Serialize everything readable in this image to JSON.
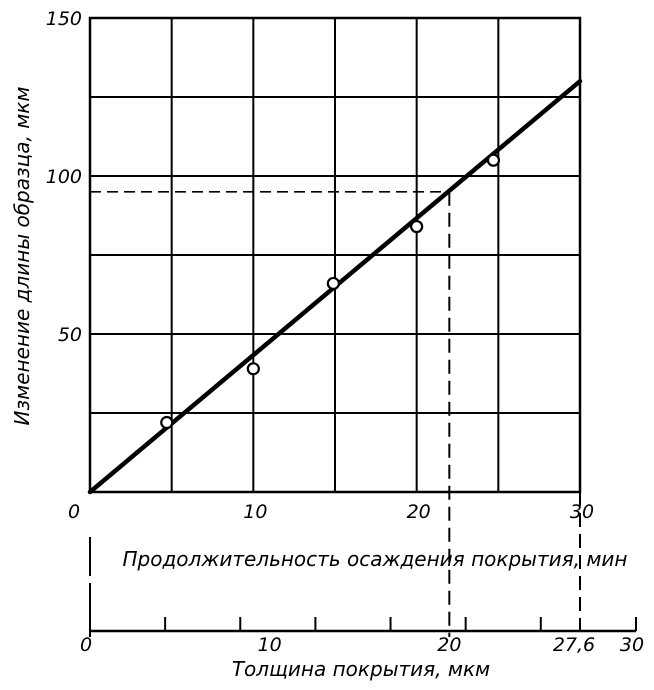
{
  "chart_data": {
    "type": "scatter",
    "y_axis": {
      "label": "Изменение длины образца, мкм",
      "ylim": [
        0,
        150
      ],
      "tick_values": [
        0,
        50,
        100,
        150
      ],
      "tick_labels": [
        "0",
        "50",
        "100",
        "150"
      ],
      "grid_step": 25
    },
    "x_axis_primary": {
      "label": "Продолжительность осаждения покрытия, мин",
      "xlim": [
        0,
        30
      ],
      "tick_values": [
        10,
        20,
        30
      ],
      "tick_labels": [
        "10",
        "20",
        "30"
      ],
      "grid_step": 5
    },
    "x_axis_secondary": {
      "label": "Толщина покрытия, мкм",
      "xlim": [
        0,
        30
      ],
      "tick_values": [
        0,
        10,
        20,
        27.6,
        30
      ],
      "tick_labels": [
        "0",
        "10",
        "20",
        "27,6",
        "30"
      ],
      "minor_tick_step": 5
    },
    "points": [
      {
        "x": 4.7,
        "y": 22
      },
      {
        "x": 10,
        "y": 39
      },
      {
        "x": 14.9,
        "y": 66
      },
      {
        "x": 20,
        "y": 84
      },
      {
        "x": 24.7,
        "y": 105
      }
    ],
    "fit_line": {
      "x": [
        0,
        30
      ],
      "y": [
        0,
        130
      ]
    },
    "reference_lines": {
      "y": 95,
      "x_primary": 22,
      "x_secondary_values": [
        20,
        27.6
      ]
    },
    "grid": true
  }
}
